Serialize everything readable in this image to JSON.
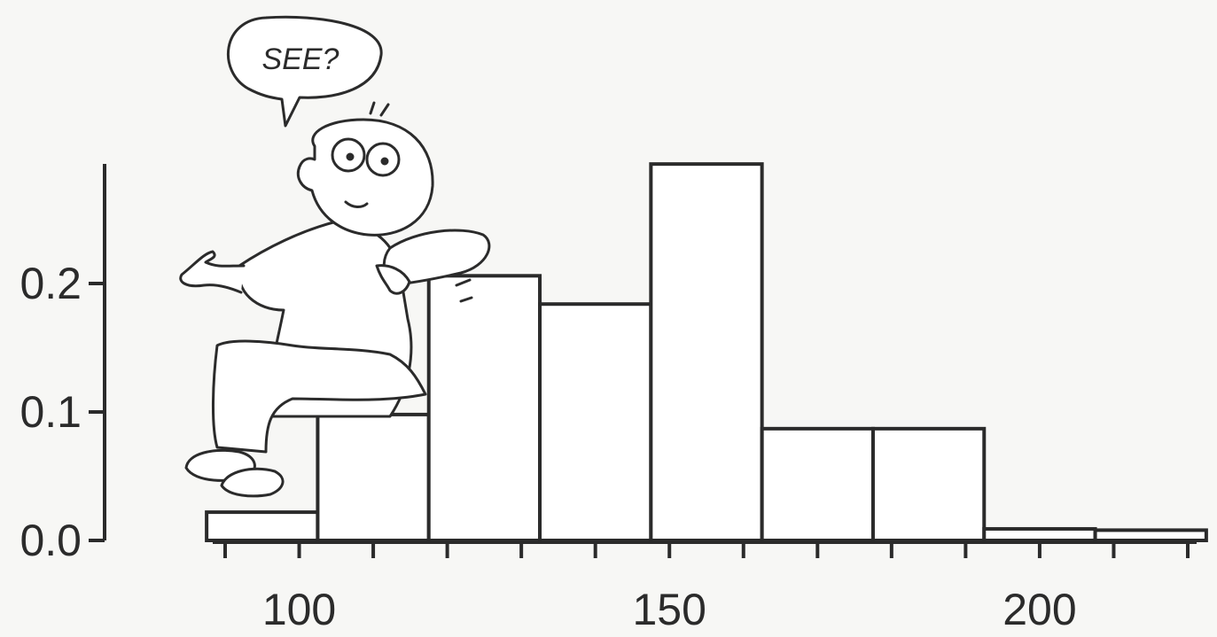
{
  "chart_data": {
    "type": "bar",
    "title": "",
    "xlabel": "",
    "ylabel": "",
    "bin_edges": [
      87.5,
      102.5,
      117.5,
      132.5,
      147.5,
      162.5,
      177.5,
      192.5,
      207.5,
      222.5
    ],
    "values": [
      0.022,
      0.098,
      0.206,
      0.184,
      0.293,
      0.087,
      0.087,
      0.009,
      0.008
    ],
    "xlim": [
      85,
      225
    ],
    "ylim": [
      0,
      0.3
    ],
    "x_ticks": [
      90,
      100,
      110,
      120,
      130,
      140,
      150,
      160,
      170,
      180,
      190,
      200,
      210,
      220
    ],
    "x_tick_labels": [
      {
        "value": 100,
        "label": "100"
      },
      {
        "value": 150,
        "label": "150"
      },
      {
        "value": 200,
        "label": "200"
      }
    ],
    "y_ticks": [
      {
        "value": 0.0,
        "label": "0.0"
      },
      {
        "value": 0.1,
        "label": "0.1"
      },
      {
        "value": 0.2,
        "label": "0.2"
      }
    ],
    "grid": false,
    "legend": "none",
    "annotations": [
      "SEE?"
    ],
    "colors": {
      "bar_fill": "#ffffff",
      "stroke": "#2b2b2b",
      "background": "#f7f7f5"
    }
  },
  "illustration": {
    "icon": "cartoon-man-icon",
    "speech_text": "SEE?"
  }
}
